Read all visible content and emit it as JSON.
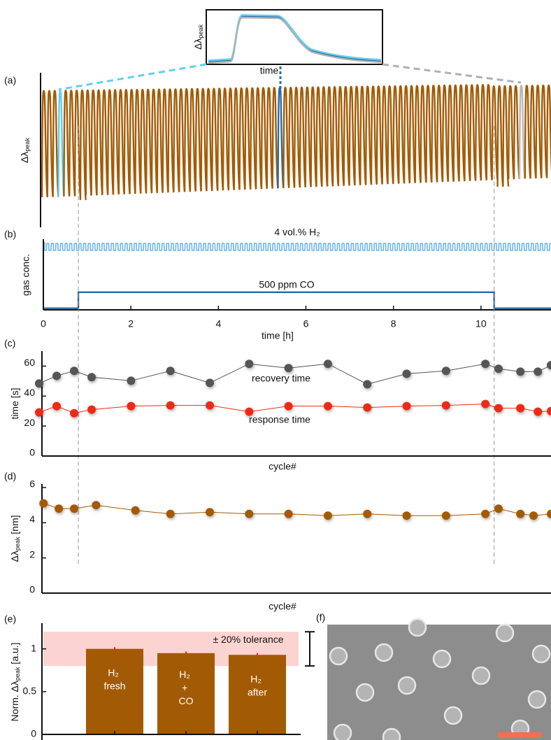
{
  "chart_data": [
    {
      "type": "trace",
      "panel": "(a)",
      "ylabel": [
        "Δλ",
        "peak"
      ],
      "color": "#a35a04",
      "inset": {
        "xlabel": "time",
        "ylabel": [
          "Δλ",
          "peak"
        ]
      }
    },
    {
      "type": "step",
      "panel": "(b)",
      "ylabel": "gas conc.",
      "xlabel": "time [h]",
      "xlim": [
        0,
        11.6
      ],
      "xticks": [
        0,
        2,
        4,
        6,
        8,
        10
      ],
      "ylim": [
        -0.1,
        4.4
      ],
      "series": [
        {
          "name": "4 vol.% H₂",
          "color": "#6cb6ee"
        },
        {
          "name": "500 ppm CO",
          "color": "#2a6aa8",
          "x": [
            0,
            0.8,
            0.8,
            10.3,
            10.3,
            11.6
          ],
          "values": [
            0,
            0,
            1,
            1,
            0,
            0
          ]
        }
      ]
    },
    {
      "type": "line",
      "panel": "(c)",
      "ylabel": [
        "time [s]"
      ],
      "xlabel": "cycle#",
      "xlim": [
        -0.1,
        11.6
      ],
      "ylim": [
        0,
        70
      ],
      "yticks": [
        0,
        20,
        40,
        60
      ],
      "series": [
        {
          "name": "recovery time",
          "color": "#555555",
          "x": [
            -0.1,
            0.3,
            0.7,
            1.1,
            2.0,
            2.9,
            3.8,
            4.7,
            5.6,
            6.5,
            7.4,
            8.3,
            9.2,
            10.1,
            10.4,
            10.9,
            11.3,
            11.6
          ],
          "values": [
            48.4,
            53.5,
            56.8,
            52.6,
            50.2,
            56.8,
            48.8,
            61.5,
            58.7,
            61.5,
            47.9,
            54.9,
            56.8,
            61.5,
            58.2,
            56.3,
            56.3,
            60.6
          ]
        },
        {
          "name": "response time",
          "color": "#ee2a12",
          "x": [
            -0.1,
            0.3,
            0.7,
            1.1,
            2.0,
            2.9,
            3.8,
            4.7,
            5.6,
            6.5,
            7.4,
            8.3,
            9.2,
            10.1,
            10.4,
            10.9,
            11.3,
            11.6
          ],
          "values": [
            29.1,
            33.3,
            28.6,
            31.0,
            33.3,
            33.8,
            33.8,
            29.6,
            33.3,
            33.3,
            32.4,
            33.3,
            33.8,
            34.7,
            31.9,
            31.9,
            29.6,
            30.0
          ]
        }
      ]
    },
    {
      "type": "line",
      "panel": "(d)",
      "ylabel": [
        "Δλ",
        "peak",
        " [nm]"
      ],
      "xlabel": "cycle#",
      "xlim": [
        -0.1,
        11.6
      ],
      "ylim": [
        0,
        6.2
      ],
      "yticks": [
        0,
        2,
        4,
        6
      ],
      "series": [
        {
          "color": "#a35a04",
          "x": [
            0,
            0.35,
            0.7,
            1.2,
            2.1,
            2.9,
            3.8,
            4.7,
            5.6,
            6.5,
            7.4,
            8.3,
            9.2,
            10.1,
            10.4,
            10.9,
            11.2,
            11.6
          ],
          "values": [
            5.1,
            4.8,
            4.8,
            5.0,
            4.7,
            4.5,
            4.6,
            4.5,
            4.5,
            4.4,
            4.5,
            4.4,
            4.4,
            4.5,
            4.8,
            4.5,
            4.4,
            4.5
          ]
        }
      ]
    },
    {
      "type": "bar",
      "panel": "(e)",
      "ylabel": [
        "Norm. Δλ",
        "peak",
        " [a.u.]"
      ],
      "categories": [
        "H₂ fresh",
        "H₂ + CO",
        "H₂ after"
      ],
      "values": [
        1.0,
        0.95,
        0.93
      ],
      "errors": [
        0.02,
        0.02,
        0.02
      ],
      "color": "#a35a04",
      "error_color": "#ee2a12",
      "ylim": [
        0,
        1.3
      ],
      "yticks": [
        0,
        0.5,
        1
      ],
      "band": {
        "label": "± 20% tolerance",
        "range": [
          0.8,
          1.2
        ],
        "color": "#fbd3d0"
      }
    },
    {
      "type": "image",
      "panel": "(f)"
    }
  ]
}
